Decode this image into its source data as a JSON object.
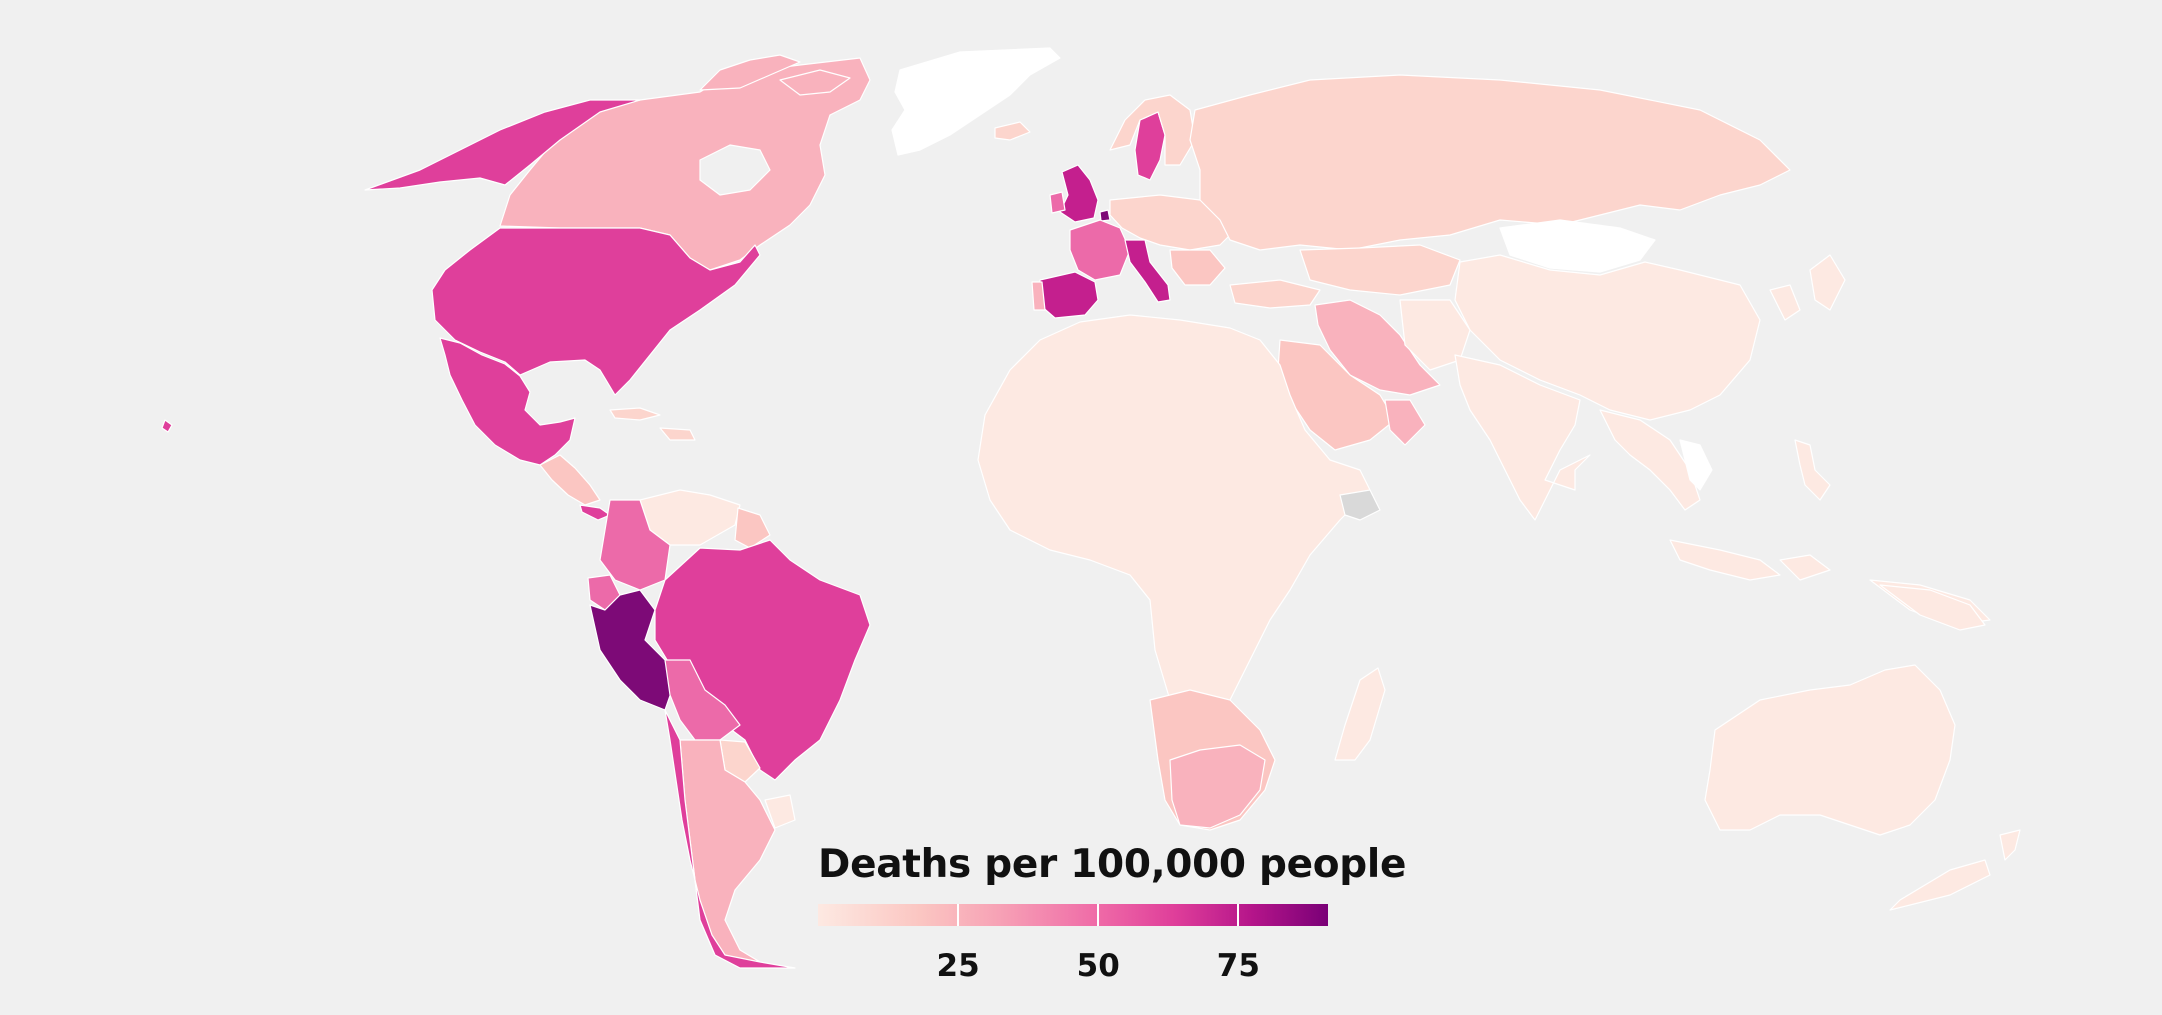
{
  "legend": {
    "title": "Deaths per 100,000 people",
    "scale_min": 0,
    "scale_max": 91,
    "ticks": [
      {
        "value": 25,
        "label": "25"
      },
      {
        "value": 50,
        "label": "50"
      },
      {
        "value": 75,
        "label": "75"
      }
    ],
    "color_stops": [
      "#fde9e2",
      "#fbc6c2",
      "#f7a3b6",
      "#ef6aa7",
      "#df3e9a",
      "#b5158a",
      "#7a0077"
    ]
  },
  "colors": {
    "background": "#f0f0f0",
    "no_data": "#ffffff",
    "unavailable": "#d9d9d9",
    "very_low": "#fde9e2",
    "low": "#fcd5cd",
    "low_mid": "#fbc6c2",
    "mid": "#f9b2bd",
    "mid_high": "#f48fb3",
    "high": "#ec6aa9",
    "very_high": "#df3f9b",
    "top": "#c41f8e",
    "extreme": "#7d0a77"
  },
  "regions": [
    {
      "name": "United States",
      "color": "#df3f9b"
    },
    {
      "name": "Alaska",
      "color": "#df3f9b"
    },
    {
      "name": "Canada",
      "color": "#f9b2bd"
    },
    {
      "name": "Greenland",
      "color": "#ffffff"
    },
    {
      "name": "Mexico",
      "color": "#df3f9b"
    },
    {
      "name": "Peru",
      "color": "#7d0a77"
    },
    {
      "name": "Brazil",
      "color": "#df3f9b"
    },
    {
      "name": "Chile",
      "color": "#df3f9b"
    },
    {
      "name": "Argentina",
      "color": "#f9b2bd"
    },
    {
      "name": "Colombia",
      "color": "#ec6aa9"
    },
    {
      "name": "Bolivia",
      "color": "#ec6aa9"
    },
    {
      "name": "United Kingdom",
      "color": "#c41f8e"
    },
    {
      "name": "Belgium",
      "color": "#7d0a77"
    },
    {
      "name": "Spain",
      "color": "#c41f8e"
    },
    {
      "name": "Italy",
      "color": "#c41f8e"
    },
    {
      "name": "France",
      "color": "#ec6aa9"
    },
    {
      "name": "Sweden",
      "color": "#df3f9b"
    },
    {
      "name": "Russia",
      "color": "#fcd5cd"
    },
    {
      "name": "Iran",
      "color": "#f9b2bd"
    },
    {
      "name": "South Africa",
      "color": "#f9b2bd"
    },
    {
      "name": "China",
      "color": "#fde9e2"
    },
    {
      "name": "Mongolia",
      "color": "#ffffff"
    },
    {
      "name": "India",
      "color": "#fde9e2"
    },
    {
      "name": "Australia",
      "color": "#fde9e2"
    },
    {
      "name": "Somalia",
      "color": "#d9d9d9"
    }
  ]
}
